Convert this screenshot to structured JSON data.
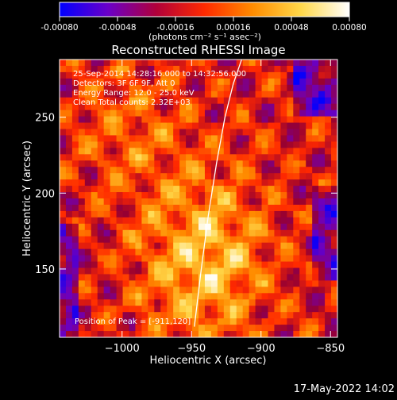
{
  "colorbar": {
    "ticks": [
      -0.0008,
      -0.00048,
      -0.00016,
      0.00016,
      0.00048,
      0.0008
    ],
    "tick_labels": [
      "-0.00080",
      "-0.00048",
      "-0.00016",
      "0.00016",
      "0.00048",
      "0.00080"
    ],
    "range": [
      -0.0008,
      0.0008
    ],
    "colormap": [
      "#0000ff",
      "#6a00c8",
      "#b0003a",
      "#ff2a00",
      "#ff8c00",
      "#ffd84a",
      "#ffffff"
    ]
  },
  "unit_label": "(photons cm⁻² s⁻¹ asec⁻²)",
  "chart_data": {
    "type": "heatmap",
    "title": "Reconstructed RHESSI Image",
    "xlabel": "Heliocentric X (arcsec)",
    "ylabel": "Heliocentric Y (arcsec)",
    "xlim": [
      -1045,
      -845
    ],
    "ylim": [
      105,
      288
    ],
    "xticks": [
      -1000,
      -950,
      -900,
      -850
    ],
    "xtick_labels": [
      "−1000",
      "−950",
      "−900",
      "−850"
    ],
    "yticks": [
      150,
      200,
      250
    ],
    "ytick_labels": [
      "150",
      "200",
      "250"
    ],
    "limb_curve": {
      "x": [
        -948,
        -943,
        -938,
        -932,
        -926,
        -920,
        -914
      ],
      "y": [
        112,
        150,
        185,
        220,
        250,
        272,
        288
      ]
    },
    "peak_position": [
      -911,
      120
    ],
    "grid": false
  },
  "info": [
    "25-Sep-2014 14:28:16.000 to 14:32:56.000",
    "Detectors: 3F 6F 9F, Att 0",
    "Energy Range: 12.0 - 25.0 keV",
    "Clean     Total counts: 2.32E+03"
  ],
  "peak_text": "Position of Peak = [-911,120]",
  "footer": {
    "timestamp": "17-May-2022 14:02"
  }
}
